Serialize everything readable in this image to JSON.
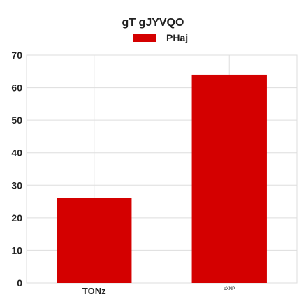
{
  "colors": {
    "bar": "#d40000",
    "grid": "#dddddd",
    "axis_text": "#222222"
  },
  "chart_data": {
    "type": "bar",
    "title": "gT gJYVQO",
    "xlabel": "",
    "ylabel": "",
    "categories": [
      "TONz",
      "oXNP"
    ],
    "series": [
      {
        "name": "PHaj",
        "values": [
          26,
          64
        ]
      }
    ],
    "ylim": [
      0,
      70
    ],
    "yticks": [
      0,
      10,
      20,
      30,
      40,
      50,
      60,
      70
    ],
    "grid": true,
    "legend_position": "top-center"
  }
}
